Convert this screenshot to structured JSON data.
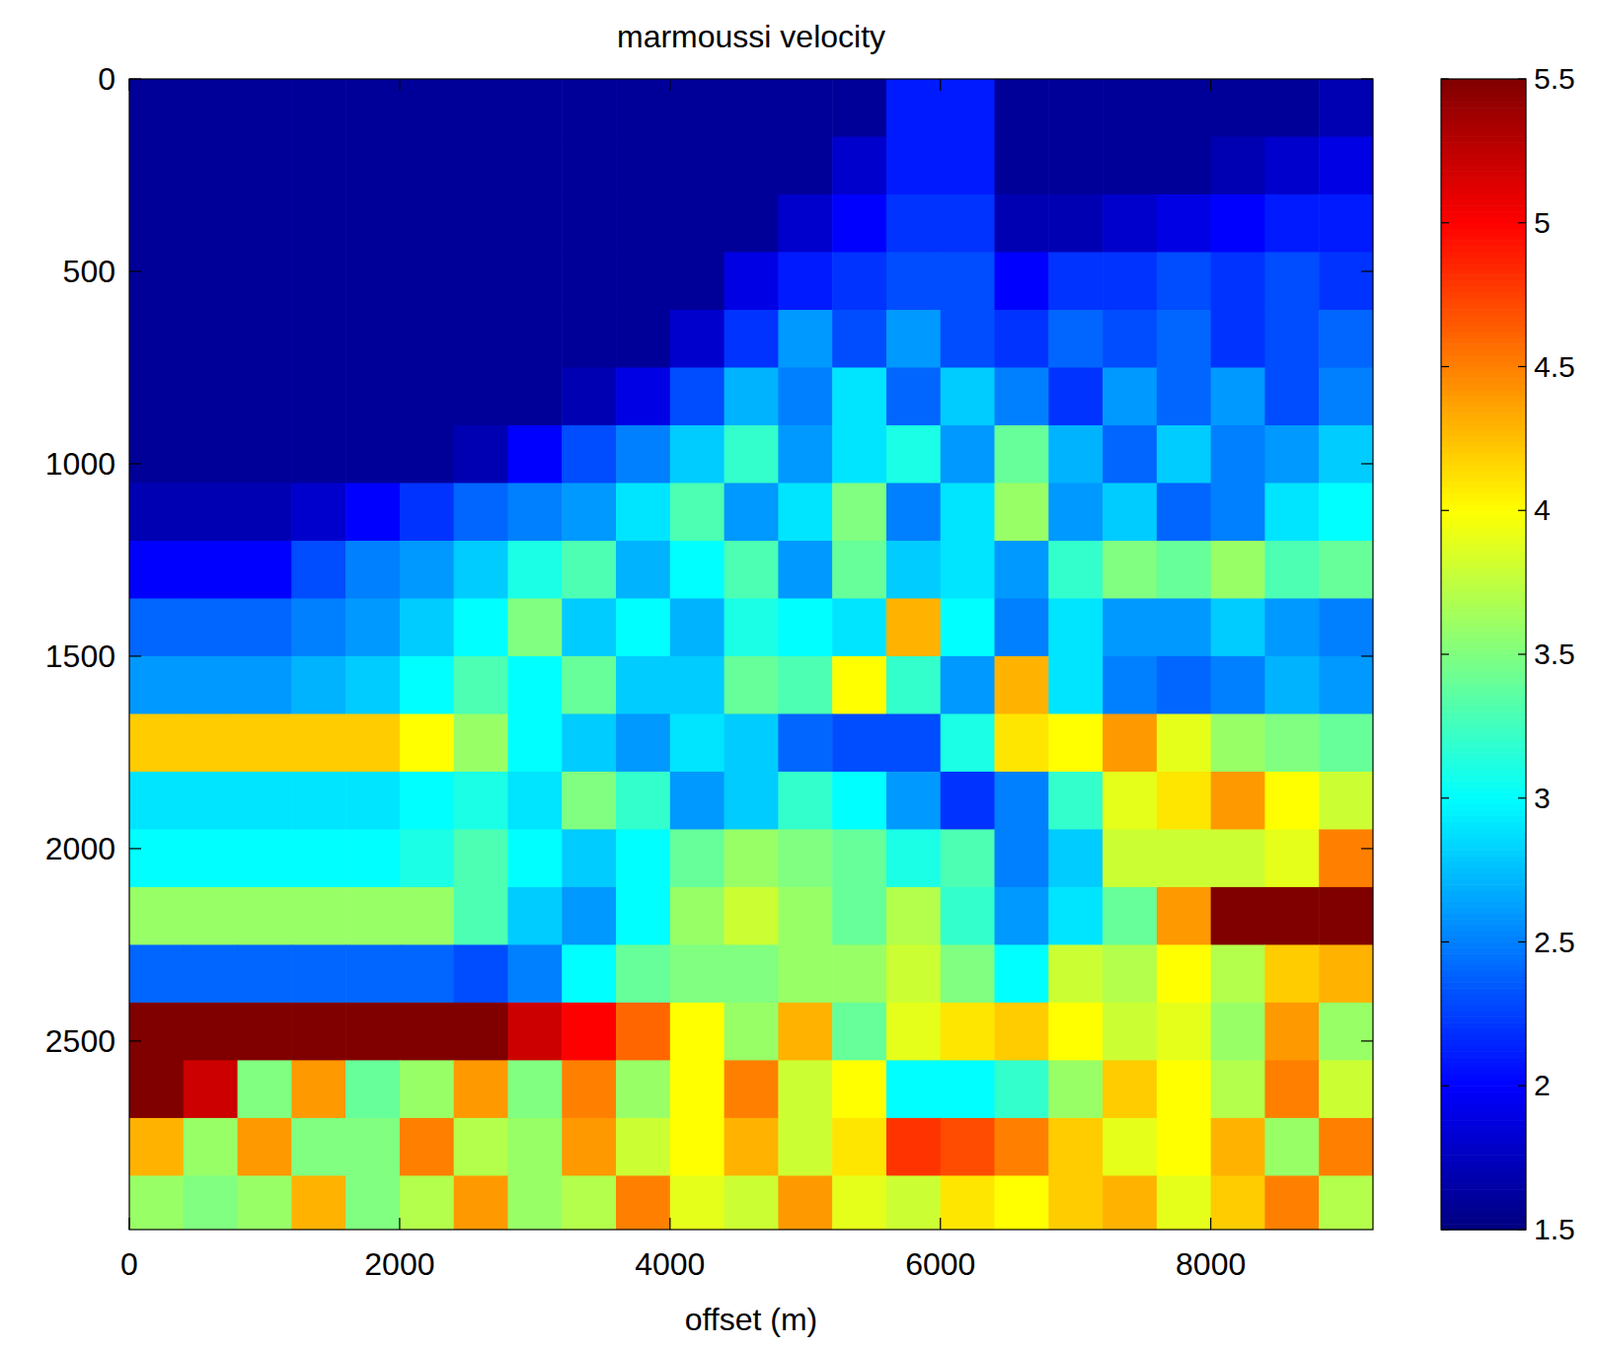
{
  "chart_data": {
    "type": "heatmap",
    "title": "marmoussi velocity",
    "x_label": "offset (m)",
    "color": "jet",
    "x": [
      200,
      600,
      1000,
      1400,
      1800,
      2200,
      2600,
      3000,
      3400,
      3800,
      4200,
      4600,
      5000,
      5400,
      5800,
      6200,
      6600,
      7000,
      7400,
      7800,
      8200,
      8600,
      9000
    ],
    "y": [
      75,
      225,
      375,
      525,
      675,
      825,
      975,
      1125,
      1275,
      1425,
      1575,
      1725,
      1875,
      2025,
      2175,
      2325,
      2475,
      2625,
      2775,
      2925
    ],
    "xlim": [
      0,
      9200
    ],
    "ylim": [
      0,
      2990
    ],
    "xticks": [
      0,
      2000,
      4000,
      6000,
      8000
    ],
    "yticks": [
      0,
      500,
      1000,
      1500,
      2000,
      2500
    ],
    "cells": [
      [
        1.6,
        1.6,
        1.6,
        1.6,
        1.6,
        1.6,
        1.6,
        1.6,
        1.6,
        1.6,
        1.6,
        1.6,
        1.6,
        1.6,
        2.1,
        2.1,
        1.6,
        1.6,
        1.6,
        1.6,
        1.6,
        1.6,
        1.7
      ],
      [
        1.6,
        1.6,
        1.6,
        1.6,
        1.6,
        1.6,
        1.6,
        1.6,
        1.6,
        1.6,
        1.6,
        1.6,
        1.6,
        1.8,
        2.1,
        2.1,
        1.6,
        1.6,
        1.6,
        1.6,
        1.7,
        1.8,
        1.9
      ],
      [
        1.6,
        1.6,
        1.6,
        1.6,
        1.6,
        1.6,
        1.6,
        1.6,
        1.6,
        1.6,
        1.6,
        1.6,
        1.8,
        2.0,
        2.2,
        2.2,
        1.7,
        1.7,
        1.8,
        1.9,
        2.0,
        2.1,
        2.1
      ],
      [
        1.6,
        1.6,
        1.6,
        1.6,
        1.6,
        1.6,
        1.6,
        1.6,
        1.6,
        1.6,
        1.6,
        1.9,
        2.1,
        2.2,
        2.3,
        2.3,
        2.0,
        2.2,
        2.2,
        2.3,
        2.2,
        2.3,
        2.2
      ],
      [
        1.6,
        1.6,
        1.6,
        1.6,
        1.6,
        1.6,
        1.6,
        1.6,
        1.6,
        1.6,
        1.8,
        2.2,
        2.6,
        2.3,
        2.6,
        2.3,
        2.2,
        2.4,
        2.3,
        2.4,
        2.2,
        2.3,
        2.4
      ],
      [
        1.6,
        1.6,
        1.6,
        1.6,
        1.6,
        1.6,
        1.6,
        1.6,
        1.7,
        1.9,
        2.3,
        2.7,
        2.5,
        2.9,
        2.4,
        2.8,
        2.5,
        2.2,
        2.6,
        2.4,
        2.6,
        2.3,
        2.5
      ],
      [
        1.6,
        1.6,
        1.6,
        1.6,
        1.6,
        1.6,
        1.7,
        2.0,
        2.3,
        2.5,
        2.8,
        3.2,
        2.6,
        2.9,
        3.1,
        2.6,
        3.4,
        2.7,
        2.4,
        2.8,
        2.5,
        2.6,
        2.8
      ],
      [
        1.7,
        1.7,
        1.7,
        1.8,
        2.0,
        2.2,
        2.4,
        2.5,
        2.6,
        2.9,
        3.3,
        2.6,
        2.9,
        3.5,
        2.5,
        2.9,
        3.6,
        2.6,
        2.8,
        2.4,
        2.5,
        2.9,
        3.0
      ],
      [
        2.0,
        2.0,
        2.0,
        2.3,
        2.5,
        2.6,
        2.8,
        3.1,
        3.3,
        2.7,
        3.0,
        3.3,
        2.6,
        3.4,
        2.8,
        2.9,
        2.6,
        3.2,
        3.5,
        3.4,
        3.6,
        3.3,
        3.4
      ],
      [
        2.4,
        2.4,
        2.4,
        2.5,
        2.6,
        2.8,
        3.0,
        3.5,
        2.8,
        3.0,
        2.7,
        3.1,
        3.0,
        2.9,
        4.3,
        3.0,
        2.5,
        2.9,
        2.6,
        2.6,
        2.8,
        2.6,
        2.5
      ],
      [
        2.6,
        2.6,
        2.6,
        2.7,
        2.8,
        3.0,
        3.3,
        3.0,
        3.4,
        2.8,
        2.8,
        3.4,
        3.3,
        4.0,
        3.2,
        2.6,
        4.3,
        2.9,
        2.5,
        2.4,
        2.5,
        2.7,
        2.6
      ],
      [
        4.2,
        4.2,
        4.2,
        4.2,
        4.2,
        4.0,
        3.6,
        3.0,
        2.8,
        2.6,
        2.9,
        2.8,
        2.4,
        2.3,
        2.3,
        3.1,
        4.1,
        4.0,
        4.4,
        3.9,
        3.6,
        3.5,
        3.4
      ],
      [
        2.9,
        2.9,
        2.9,
        2.9,
        2.9,
        3.0,
        3.1,
        2.9,
        3.5,
        3.2,
        2.6,
        2.8,
        3.2,
        3.0,
        2.6,
        2.2,
        2.5,
        3.2,
        3.9,
        4.1,
        4.4,
        4.0,
        3.8
      ],
      [
        3.0,
        3.0,
        3.0,
        3.0,
        3.0,
        3.1,
        3.3,
        3.0,
        2.8,
        3.0,
        3.4,
        3.6,
        3.5,
        3.4,
        3.1,
        3.3,
        2.5,
        2.8,
        3.8,
        3.8,
        3.8,
        3.9,
        4.5
      ],
      [
        3.6,
        3.6,
        3.6,
        3.6,
        3.6,
        3.6,
        3.3,
        2.8,
        2.6,
        3.0,
        3.6,
        3.8,
        3.6,
        3.4,
        3.7,
        3.2,
        2.6,
        2.9,
        3.4,
        4.4,
        5.5,
        5.5,
        5.5
      ],
      [
        2.4,
        2.4,
        2.4,
        2.4,
        2.4,
        2.4,
        2.3,
        2.5,
        3.0,
        3.4,
        3.5,
        3.5,
        3.6,
        3.6,
        3.8,
        3.5,
        3.0,
        3.8,
        3.7,
        4.0,
        3.7,
        4.2,
        4.3
      ],
      [
        5.5,
        5.5,
        5.5,
        5.5,
        5.5,
        5.5,
        5.5,
        5.2,
        5.0,
        4.6,
        4.0,
        3.6,
        4.3,
        3.4,
        3.9,
        4.1,
        4.2,
        4.0,
        3.8,
        3.9,
        3.6,
        4.4,
        3.6
      ],
      [
        5.5,
        5.2,
        3.5,
        4.4,
        3.4,
        3.6,
        4.4,
        3.5,
        4.5,
        3.6,
        4.0,
        4.5,
        3.8,
        4.0,
        3.0,
        3.0,
        3.2,
        3.6,
        4.2,
        4.0,
        3.7,
        4.5,
        3.8
      ],
      [
        4.3,
        3.6,
        4.4,
        3.5,
        3.5,
        4.5,
        3.7,
        3.6,
        4.4,
        3.8,
        4.0,
        4.3,
        3.8,
        4.1,
        4.8,
        4.7,
        4.5,
        4.2,
        3.9,
        4.0,
        4.3,
        3.6,
        4.5
      ],
      [
        3.6,
        3.5,
        3.6,
        4.3,
        3.5,
        3.7,
        4.4,
        3.6,
        3.7,
        4.5,
        3.9,
        3.8,
        4.4,
        3.9,
        3.8,
        4.1,
        4.0,
        4.2,
        4.3,
        3.9,
        4.2,
        4.5,
        3.7
      ]
    ],
    "colorbar": {
      "range": [
        1.5,
        5.5
      ],
      "ticks": [
        1.5,
        2,
        2.5,
        3,
        3.5,
        4,
        4.5,
        5,
        5.5
      ]
    }
  }
}
